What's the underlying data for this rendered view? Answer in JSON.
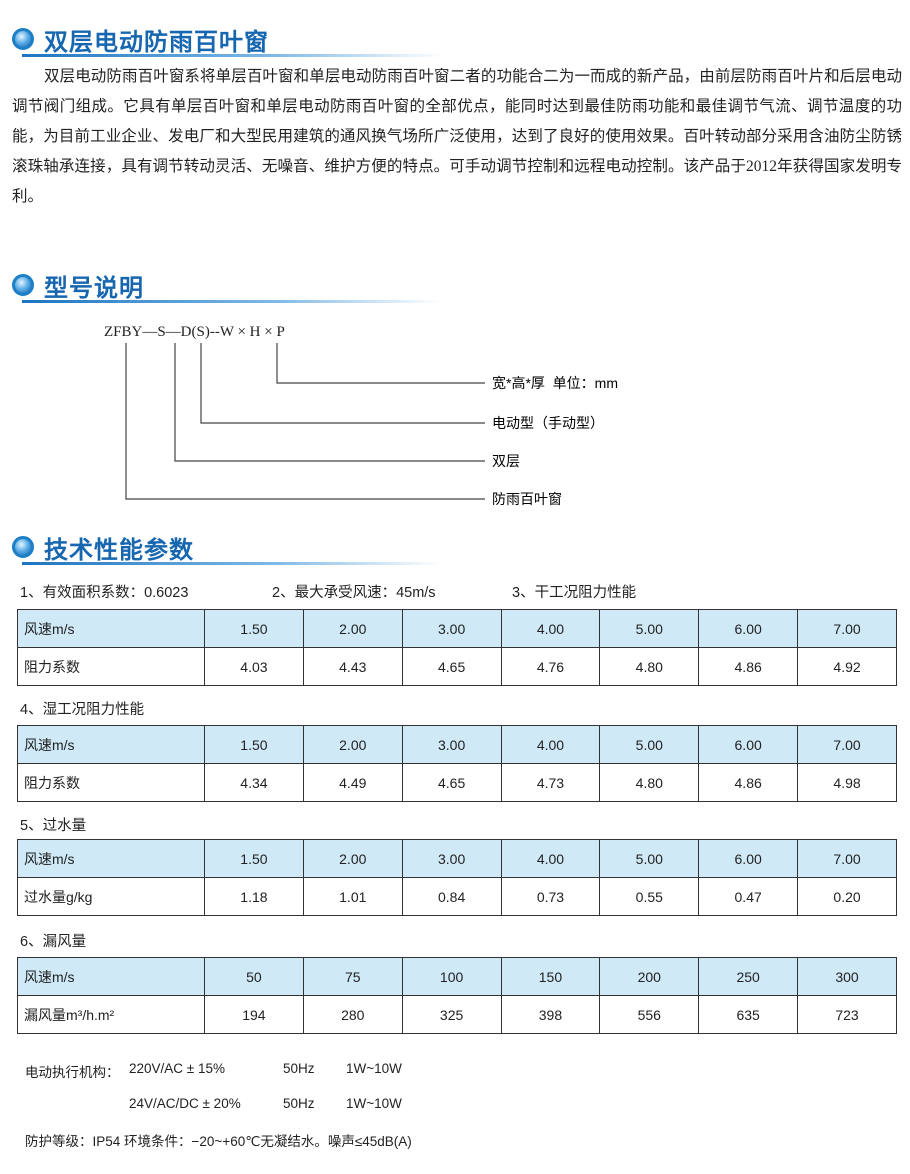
{
  "sections": {
    "intro": {
      "title": "双层电动防雨百叶窗",
      "body": "双层电动防雨百叶窗系将单层百叶窗和单层电动防雨百叶窗二者的功能合二为一而成的新产品，由前层防雨百叶片和后层电动调节阀门组成。它具有单层百叶窗和单层电动防雨百叶窗的全部优点，能同时达到最佳防雨功能和最佳调节气流、调节温度的功能，为目前工业企业、发电厂和大型民用建筑的通风换气场所广泛使用，达到了良好的使用效果。百叶转动部分采用含油防尘防锈滚珠轴承连接，具有调节转动灵活、无噪音、维护方便的特点。可手动调节控制和远程电动控制。该产品于2012年获得国家发明专利。"
    },
    "model": {
      "title": "型号说明",
      "code": "ZFBY—S—D(S)--W × H × P",
      "labels": [
        "宽*高*厚  单位：mm",
        "电动型（手动型）",
        "双层",
        "防雨百叶窗"
      ]
    },
    "tech": {
      "title": "技术性能参数"
    }
  },
  "specs": {
    "item1": "1、有效面积系数：0.6023",
    "item2": "2、最大承受风速：45m/s",
    "item3": "3、干工况阻力性能",
    "item4": "4、湿工况阻力性能",
    "item5": "5、过水量",
    "item6": "6、漏风量"
  },
  "tables": [
    {
      "rows": [
        [
          "风速m/s",
          "1.50",
          "2.00",
          "3.00",
          "4.00",
          "5.00",
          "6.00",
          "7.00"
        ],
        [
          "阻力系数",
          "4.03",
          "4.43",
          "4.65",
          "4.76",
          "4.80",
          "4.86",
          "4.92"
        ]
      ]
    },
    {
      "rows": [
        [
          "风速m/s",
          "1.50",
          "2.00",
          "3.00",
          "4.00",
          "5.00",
          "6.00",
          "7.00"
        ],
        [
          "阻力系数",
          "4.34",
          "4.49",
          "4.65",
          "4.73",
          "4.80",
          "4.86",
          "4.98"
        ]
      ]
    },
    {
      "rows": [
        [
          "风速m/s",
          "1.50",
          "2.00",
          "3.00",
          "4.00",
          "5.00",
          "6.00",
          "7.00"
        ],
        [
          "过水量g/kg",
          "1.18",
          "1.01",
          "0.84",
          "0.73",
          "0.55",
          "0.47",
          "0.20"
        ]
      ]
    },
    {
      "rows": [
        [
          "风速m/s",
          "50",
          "75",
          "100",
          "150",
          "200",
          "250",
          "300"
        ],
        [
          "漏风量m³/h.m²",
          "194",
          "280",
          "325",
          "398",
          "556",
          "635",
          "723"
        ]
      ]
    }
  ],
  "notes": {
    "actuator_label": "电动执行机构：",
    "v1": "220V/AC ± 15%",
    "v2": "24V/AC/DC ± 20%",
    "hz": "50Hz",
    "w": "1W~10W",
    "protection": "防护等级：IP54  环境条件：−20~+60℃无凝结水。噪声≤45dB(A)"
  },
  "colors": {
    "heading": "#1666b0",
    "table_header": "#cfe9f7"
  }
}
